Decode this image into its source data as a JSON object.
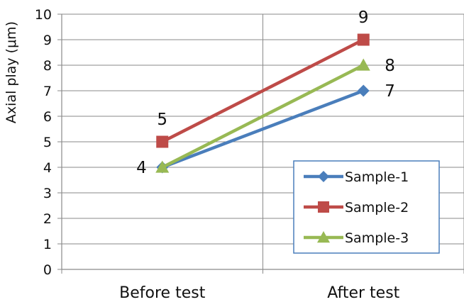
{
  "chart_data": {
    "type": "line",
    "categories": [
      "Before test",
      "After test"
    ],
    "ylabel": "Axial play (μm)",
    "ylim": [
      0,
      10
    ],
    "yticks": [
      "0",
      "1",
      "2",
      "3",
      "4",
      "5",
      "6",
      "7",
      "8",
      "9",
      "10"
    ],
    "grid": true,
    "legend_position": "bottom-right",
    "series": [
      {
        "name": "Sample-1",
        "values": [
          4,
          7
        ],
        "color": "#4a7ebb",
        "marker": "diamond"
      },
      {
        "name": "Sample-2",
        "values": [
          5,
          9
        ],
        "color": "#be4b48",
        "marker": "square"
      },
      {
        "name": "Sample-3",
        "values": [
          4,
          8
        ],
        "color": "#98b954",
        "marker": "triangle"
      }
    ],
    "data_labels": [
      {
        "text": "4",
        "category": 0,
        "value": 4,
        "pos": "left"
      },
      {
        "text": "5",
        "category": 0,
        "value": 5,
        "pos": "above"
      },
      {
        "text": "7",
        "category": 1,
        "value": 7,
        "pos": "right"
      },
      {
        "text": "8",
        "category": 1,
        "value": 8,
        "pos": "right"
      },
      {
        "text": "9",
        "category": 1,
        "value": 9,
        "pos": "above"
      }
    ]
  }
}
